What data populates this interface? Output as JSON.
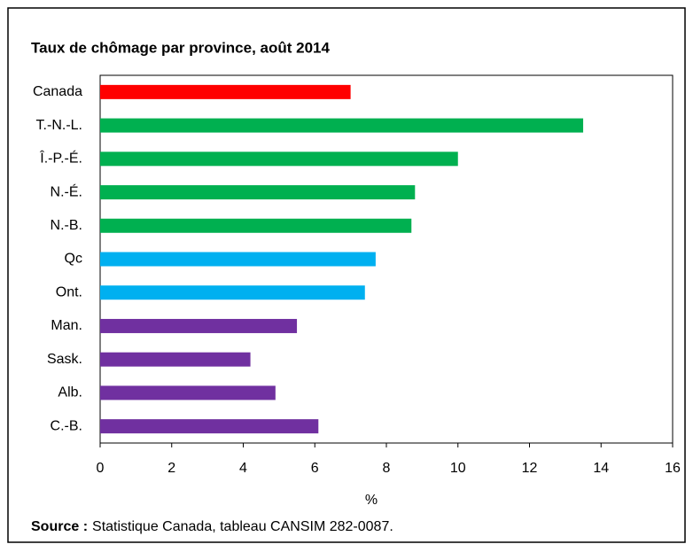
{
  "chart_data": {
    "type": "bar",
    "orientation": "horizontal",
    "title": "Taux de chômage par province, août 2014",
    "categories": [
      "Canada",
      "T.-N.-L.",
      "Î.-P.-É.",
      "N.-É.",
      "N.-B.",
      "Qc",
      "Ont.",
      "Man.",
      "Sask.",
      "Alb.",
      "C.-B."
    ],
    "values": [
      7.0,
      13.5,
      10.0,
      8.8,
      8.7,
      7.7,
      7.4,
      5.5,
      4.2,
      4.9,
      6.1
    ],
    "colors": [
      "#ff0000",
      "#00b050",
      "#00b050",
      "#00b050",
      "#00b050",
      "#00b0f0",
      "#00b0f0",
      "#7030a0",
      "#7030a0",
      "#7030a0",
      "#7030a0"
    ],
    "xlabel": "%",
    "xlim": [
      0,
      16
    ],
    "xticks": [
      0,
      2,
      4,
      6,
      8,
      10,
      12,
      14,
      16
    ],
    "grid": false,
    "source_label": "Source :",
    "source_text": "Statistique Canada, tableau CANSIM 282-0087."
  }
}
